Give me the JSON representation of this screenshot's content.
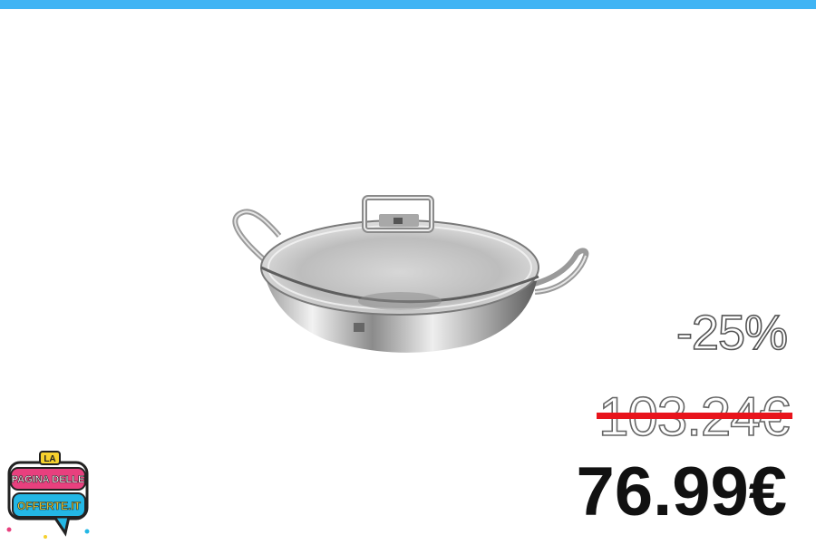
{
  "colors": {
    "top_bar": "#3fb4f4",
    "strike_line": "#e8141c",
    "price_text": "#111111",
    "logo_pink": "#e8407e",
    "logo_blue": "#23b7e5",
    "logo_yellow": "#f6d12e"
  },
  "product": {
    "image": "stainless-steel-wok-with-glass-lid"
  },
  "offer": {
    "discount": "-25%",
    "old_price": "103.24€",
    "new_price": "76.99€"
  },
  "logo": {
    "line1": "LA",
    "line2": "PAGINA DELLE",
    "line3": "OFFERTE.IT"
  }
}
